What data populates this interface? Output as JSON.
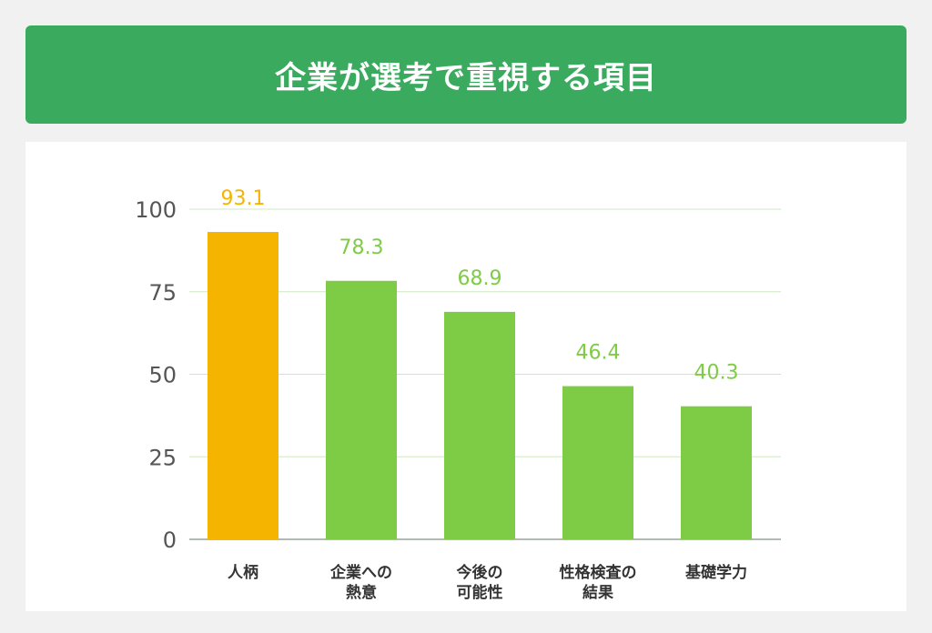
{
  "header": {
    "title": "企業が選考で重視する項目"
  },
  "colors": {
    "title_bg": "#3aab5e",
    "bar_highlight": "#f5b400",
    "bar_default": "#7ecb45",
    "grid": "#cfe8c4",
    "axis_text": "#555555"
  },
  "chart_data": {
    "type": "bar",
    "title": "",
    "xlabel": "",
    "ylabel": "",
    "ylim": [
      0,
      100
    ],
    "yticks": [
      0,
      25,
      50,
      75,
      100
    ],
    "grid": true,
    "categories": [
      [
        "人柄"
      ],
      [
        "企業への",
        "熱意"
      ],
      [
        "今後の",
        "可能性"
      ],
      [
        "性格検査の",
        "結果"
      ],
      [
        "基礎学力"
      ]
    ],
    "values": [
      93.1,
      78.3,
      68.9,
      46.4,
      40.3
    ],
    "value_labels": [
      "93.1",
      "78.3",
      "68.9",
      "46.4",
      "40.3"
    ],
    "highlight_index": 0
  }
}
